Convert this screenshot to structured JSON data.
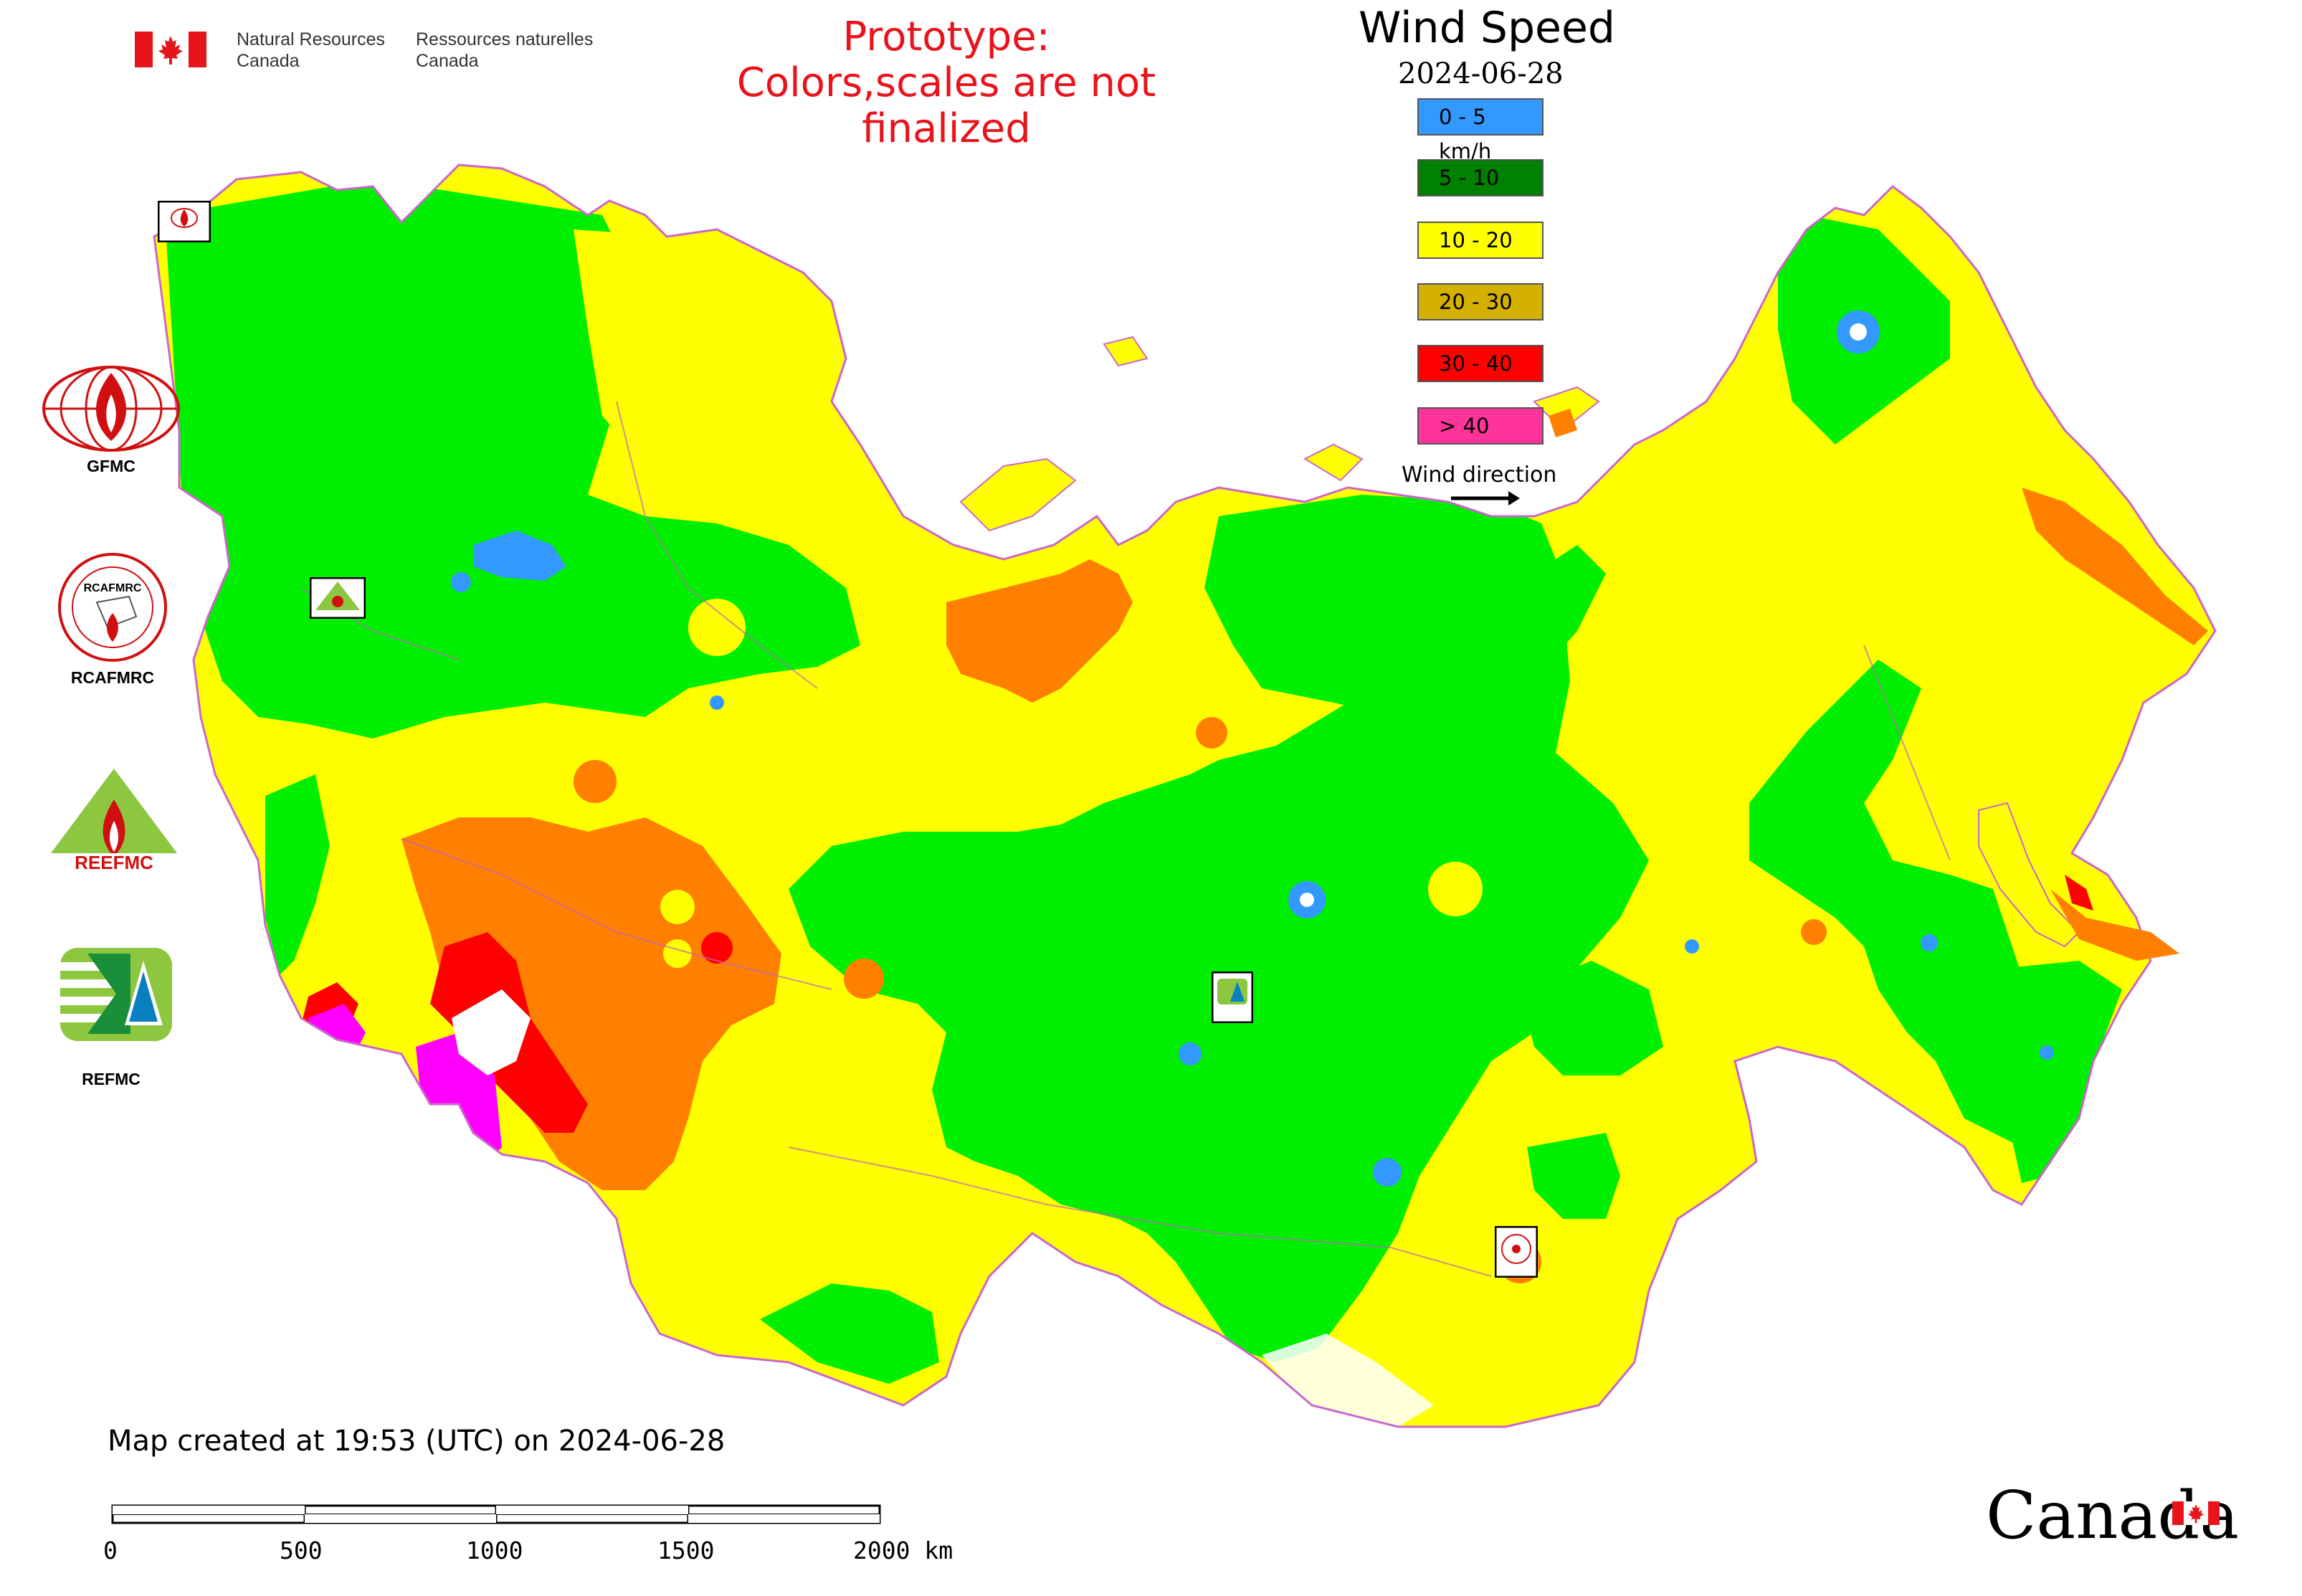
{
  "header": {
    "agency_en": [
      "Natural Resources",
      "Canada"
    ],
    "agency_fr": [
      "Ressources naturelles",
      "Canada"
    ],
    "prototype_lines": [
      "Prototype:",
      "Colors,scales are not finalized"
    ],
    "title": "Wind Speed",
    "date": "2024-06-28"
  },
  "legend": {
    "items": [
      {
        "label": "0 - 5 km/h",
        "color": "#3399ff"
      },
      {
        "label": "5 - 10",
        "color": "#008000"
      },
      {
        "label": "10 - 20",
        "color": "#ffff00"
      },
      {
        "label": "20 - 30",
        "color": "#d4b000"
      },
      {
        "label": "30 - 40",
        "color": "#ff0000"
      },
      {
        "label": "> 40",
        "color": "#ff3399"
      }
    ],
    "wind_direction_label": "Wind direction"
  },
  "map_colors": {
    "calm": "#3399ff",
    "low": "#00ee00",
    "moderate": "#ffff00",
    "strong": "#ff8000",
    "very_strong": "#ff0000",
    "extreme": "#ff00ff",
    "border": "#cc66cc"
  },
  "organizations": [
    {
      "label": "GFMC"
    },
    {
      "label": "RCAFMRC"
    },
    {
      "label": "REEFMC"
    },
    {
      "label": "REFMC"
    }
  ],
  "map_markers": [
    "GFMC",
    "REEFMC",
    "REFMC",
    "RCAFMRC"
  ],
  "footer": {
    "created": "Map created at 19:53 (UTC) on 2024-06-28",
    "scale_ticks": [
      "0",
      "500",
      "1000",
      "1500",
      "2000 km"
    ],
    "wordmark": "Canada"
  }
}
